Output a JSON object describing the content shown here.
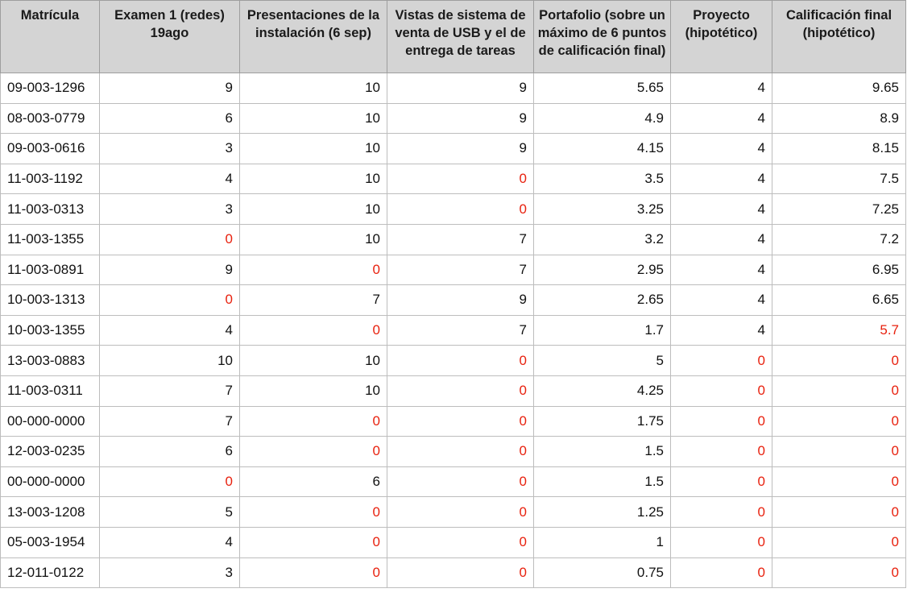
{
  "table": {
    "headers": [
      "Matrícula",
      "Examen 1 (redes) 19ago",
      "Presentaciones de la instalación (6 sep)",
      "Vistas de sistema de venta de USB y el de entrega de tareas",
      "Portafolio (sobre un máximo de 6 puntos de calificación final)",
      "Proyecto (hipotético)",
      "Calificación final (hipotético)"
    ],
    "highlight_color": "#e8210e",
    "rows": [
      [
        "09-003-1296",
        "9",
        "10",
        "9",
        "5.65",
        "4",
        "9.65"
      ],
      [
        "08-003-0779",
        "6",
        "10",
        "9",
        "4.9",
        "4",
        "8.9"
      ],
      [
        "09-003-0616",
        "3",
        "10",
        "9",
        "4.15",
        "4",
        "8.15"
      ],
      [
        "11-003-1192",
        "4",
        "10",
        "0",
        "3.5",
        "4",
        "7.5"
      ],
      [
        "11-003-0313",
        "3",
        "10",
        "0",
        "3.25",
        "4",
        "7.25"
      ],
      [
        "11-003-1355",
        "0",
        "10",
        "7",
        "3.2",
        "4",
        "7.2"
      ],
      [
        "11-003-0891",
        "9",
        "0",
        "7",
        "2.95",
        "4",
        "6.95"
      ],
      [
        "10-003-1313",
        "0",
        "7",
        "9",
        "2.65",
        "4",
        "6.65"
      ],
      [
        "10-003-1355",
        "4",
        "0",
        "7",
        "1.7",
        "4",
        "5.7"
      ],
      [
        "13-003-0883",
        "10",
        "10",
        "0",
        "5",
        "0",
        "0"
      ],
      [
        "11-003-0311",
        "7",
        "10",
        "0",
        "4.25",
        "0",
        "0"
      ],
      [
        "00-000-0000",
        "7",
        "0",
        "0",
        "1.75",
        "0",
        "0"
      ],
      [
        "12-003-0235",
        "6",
        "0",
        "0",
        "1.5",
        "0",
        "0"
      ],
      [
        "00-000-0000",
        "0",
        "6",
        "0",
        "1.5",
        "0",
        "0"
      ],
      [
        "13-003-1208",
        "5",
        "0",
        "0",
        "1.25",
        "0",
        "0"
      ],
      [
        "05-003-1954",
        "4",
        "0",
        "0",
        "1",
        "0",
        "0"
      ],
      [
        "12-011-0122",
        "3",
        "0",
        "0",
        "0.75",
        "0",
        "0"
      ]
    ]
  }
}
